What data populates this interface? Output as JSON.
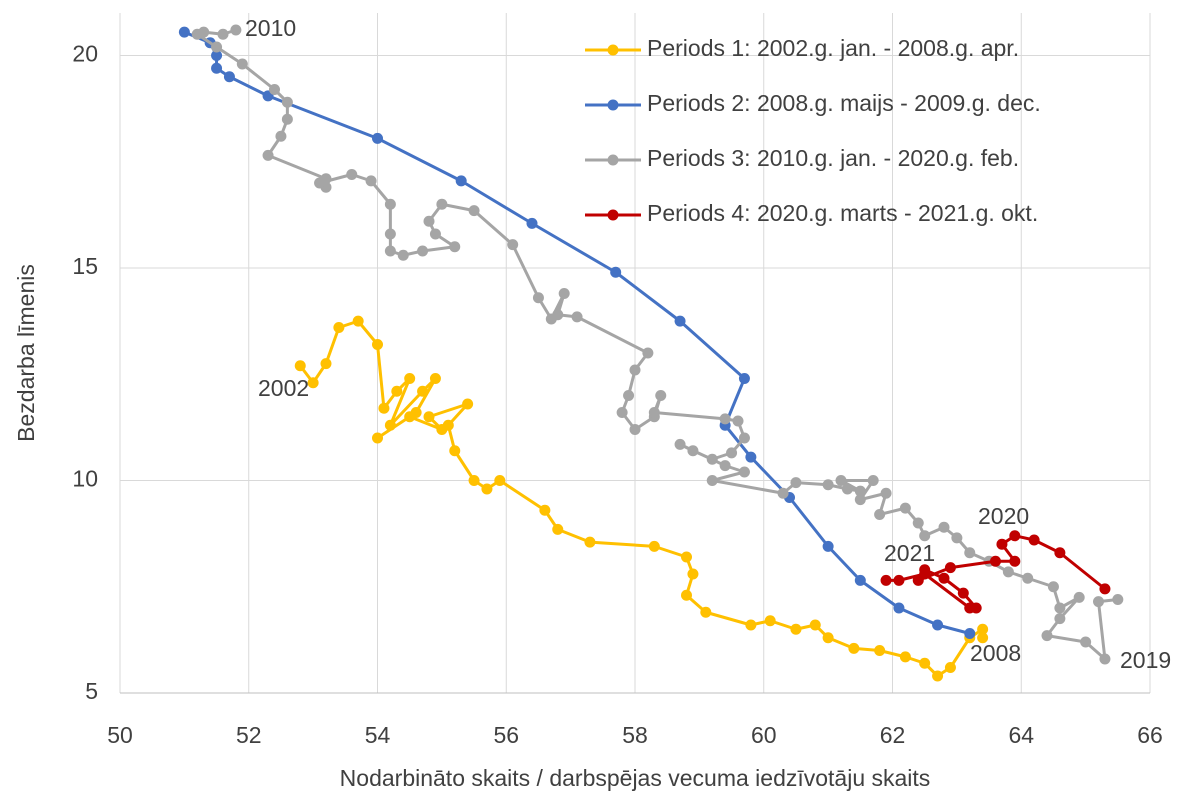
{
  "chart_data": {
    "type": "line",
    "x_label": "Nodarbināto skaits / darbspējas vecuma iedzīvotāju skaits",
    "y_label": "Bezdarba līmenis",
    "xlim": [
      50,
      66
    ],
    "ylim": [
      5,
      21
    ],
    "xticks": [
      50,
      52,
      54,
      56,
      58,
      60,
      62,
      64,
      66
    ],
    "yticks": [
      5,
      10,
      15,
      20
    ],
    "grid": true,
    "legend": "top-right",
    "annotations": [
      "2010",
      "2002",
      "2008",
      "2019",
      "2020",
      "2021"
    ],
    "series": [
      {
        "name": "Periods 1: 2002.g. jan. - 2008.g. apr.",
        "color": "#FFC000",
        "x": [
          52.8,
          53.0,
          53.2,
          53.4,
          53.7,
          54.0,
          54.1,
          54.3,
          54.5,
          54.2,
          54.7,
          54.9,
          54.6,
          54.0,
          54.5,
          55.0,
          54.8,
          55.4,
          55.1,
          55.2,
          55.5,
          55.7,
          55.9,
          56.6,
          56.8,
          57.3,
          58.3,
          58.8,
          58.9,
          58.8,
          59.1,
          59.8,
          60.1,
          60.5,
          60.8,
          61.0,
          61.4,
          61.8,
          62.2,
          62.5,
          62.7,
          62.9,
          63.2,
          63.4,
          63.4
        ],
        "y": [
          12.7,
          12.3,
          12.75,
          13.6,
          13.75,
          13.2,
          11.7,
          12.1,
          12.4,
          11.3,
          12.1,
          12.4,
          11.6,
          11.0,
          11.5,
          11.2,
          11.5,
          11.8,
          11.3,
          10.7,
          10.0,
          9.8,
          10.0,
          9.3,
          8.85,
          8.55,
          8.45,
          8.2,
          7.8,
          7.3,
          6.9,
          6.6,
          6.7,
          6.5,
          6.6,
          6.3,
          6.05,
          6.0,
          5.85,
          5.7,
          5.4,
          5.6,
          6.3,
          6.5,
          6.3
        ]
      },
      {
        "name": "Periods 2: 2008.g. maijs - 2009.g. dec.",
        "color": "#4472C4",
        "x": [
          63.2,
          62.7,
          62.1,
          61.5,
          61.0,
          60.4,
          59.8,
          59.4,
          59.7,
          58.7,
          57.7,
          56.4,
          55.3,
          54.0,
          52.3,
          51.7,
          51.5,
          51.5,
          51.4,
          51.0
        ],
        "y": [
          6.4,
          6.6,
          7.0,
          7.65,
          8.45,
          9.6,
          10.55,
          11.3,
          12.4,
          13.75,
          14.9,
          16.05,
          17.05,
          18.05,
          19.05,
          19.5,
          19.7,
          20.0,
          20.3,
          20.55
        ]
      },
      {
        "name": "Periods 3: 2010.g. jan. - 2020.g. feb.",
        "color": "#A5A5A5",
        "x": [
          51.8,
          51.6,
          51.3,
          51.2,
          51.5,
          51.9,
          52.4,
          52.6,
          52.6,
          52.5,
          52.3,
          53.2,
          53.2,
          53.1,
          53.6,
          53.9,
          54.2,
          54.2,
          54.2,
          54.4,
          54.7,
          55.2,
          54.9,
          54.8,
          55.0,
          55.5,
          56.1,
          56.5,
          56.7,
          56.9,
          56.8,
          57.1,
          58.2,
          58.0,
          57.9,
          57.8,
          58.0,
          58.3,
          58.4,
          58.3,
          59.4,
          59.6,
          59.7,
          59.5,
          59.2,
          58.9,
          58.7,
          59.4,
          59.7,
          59.2,
          60.3,
          60.5,
          61.0,
          61.3,
          61.5,
          61.2,
          61.7,
          61.5,
          61.9,
          61.8,
          62.2,
          62.4,
          62.5,
          62.8,
          63.0,
          63.2,
          63.5,
          63.8,
          64.1,
          64.5,
          64.6,
          64.9,
          64.6,
          64.4,
          65.0,
          65.3,
          65.2,
          65.5
        ],
        "y": [
          20.6,
          20.5,
          20.55,
          20.5,
          20.2,
          19.8,
          19.2,
          18.9,
          18.5,
          18.1,
          17.65,
          17.1,
          16.9,
          17.0,
          17.2,
          17.05,
          16.5,
          15.8,
          15.4,
          15.3,
          15.4,
          15.5,
          15.8,
          16.1,
          16.5,
          16.35,
          15.55,
          14.3,
          13.8,
          14.4,
          13.9,
          13.85,
          13.0,
          12.6,
          12.0,
          11.6,
          11.2,
          11.5,
          12.0,
          11.6,
          11.45,
          11.4,
          11.0,
          10.65,
          10.5,
          10.7,
          10.85,
          10.35,
          10.2,
          10.0,
          9.7,
          9.95,
          9.9,
          9.8,
          9.75,
          10.0,
          10.0,
          9.55,
          9.7,
          9.2,
          9.35,
          9.0,
          8.7,
          8.9,
          8.65,
          8.3,
          8.1,
          7.85,
          7.7,
          7.5,
          7.0,
          7.25,
          6.75,
          6.35,
          6.2,
          5.8,
          7.15,
          7.2
        ]
      },
      {
        "name": "Periods 4: 2020.g. marts - 2021.g. okt.",
        "color": "#C00000",
        "x": [
          65.3,
          64.6,
          64.2,
          63.9,
          63.7,
          63.9,
          63.6,
          62.9,
          62.4,
          62.5,
          62.8,
          63.1,
          63.3,
          63.2,
          62.5,
          62.1,
          61.9
        ],
        "y": [
          7.45,
          8.3,
          8.6,
          8.7,
          8.5,
          8.1,
          8.1,
          7.95,
          7.65,
          7.9,
          7.7,
          7.35,
          7.0,
          7.0,
          7.8,
          7.65,
          7.65
        ]
      }
    ]
  }
}
